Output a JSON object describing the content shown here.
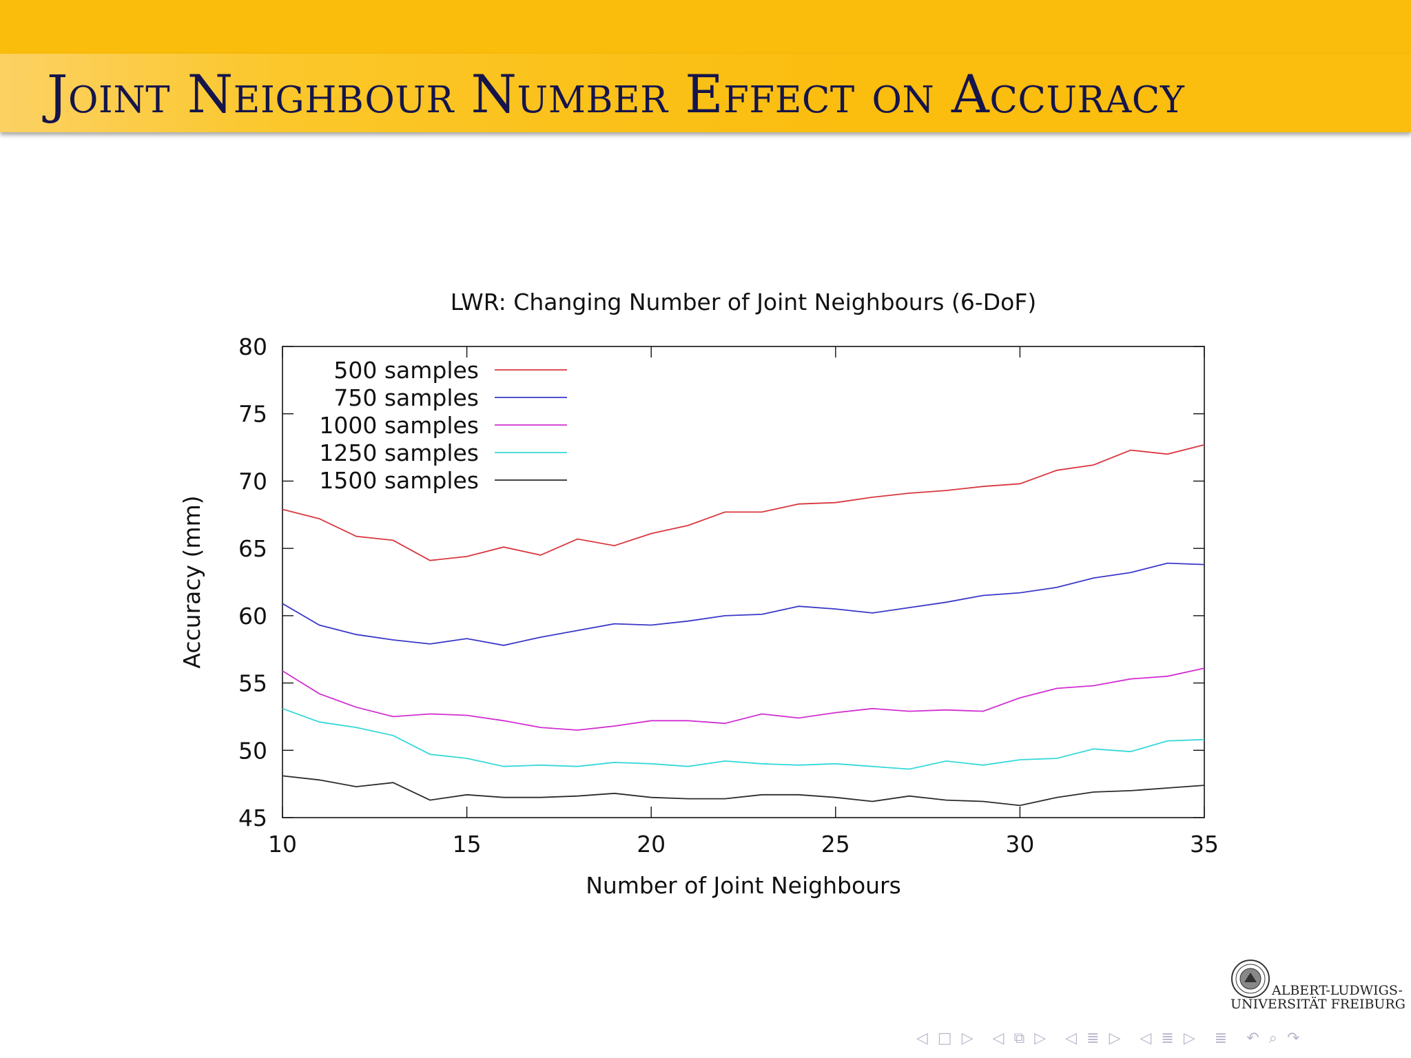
{
  "slide": {
    "title": "Joint Neighbour Number Effect on Accuracy"
  },
  "logo": {
    "line1": "ALBERT-LUDWIGS-",
    "line2": "UNIVERSITÄT FREIBURG"
  },
  "nav": {
    "icons": [
      "arrow-left-icon",
      "frame-icon",
      "arrow-right-icon",
      "arrow-left-icon",
      "subsection-icon",
      "arrow-right-icon",
      "arrow-left-icon",
      "section-icon",
      "arrow-right-icon",
      "arrow-left-icon",
      "list-icon",
      "arrow-right-icon",
      "list-icon",
      "back-icon",
      "search-icon",
      "forward-icon"
    ]
  },
  "colors": {
    "band": "#fbbd0b",
    "title_text": "#15154b",
    "nav": "#b6b6cc"
  },
  "chart_data": {
    "type": "line",
    "title": "LWR: Changing Number of Joint Neighbours (6-DoF)",
    "xlabel": "Number of Joint Neighbours",
    "ylabel": "Accuracy (mm)",
    "xlim": [
      10,
      35
    ],
    "ylim": [
      45,
      80
    ],
    "xticks": [
      10,
      15,
      20,
      25,
      30,
      35
    ],
    "yticks": [
      45,
      50,
      55,
      60,
      65,
      70,
      75,
      80
    ],
    "legend_position": "top-left",
    "grid": false,
    "x": [
      10,
      11,
      12,
      13,
      14,
      15,
      16,
      17,
      18,
      19,
      20,
      21,
      22,
      23,
      24,
      25,
      26,
      27,
      28,
      29,
      30,
      31,
      32,
      33,
      34,
      35
    ],
    "series": [
      {
        "name": "500 samples",
        "color": "#d9363e",
        "values": [
          67.9,
          67.2,
          65.9,
          65.6,
          64.1,
          64.4,
          65.1,
          64.5,
          65.7,
          65.2,
          66.1,
          66.7,
          67.7,
          67.7,
          68.3,
          68.4,
          68.8,
          69.1,
          69.3,
          69.6,
          69.8,
          70.8,
          71.2,
          72.3,
          72.0,
          72.7
        ]
      },
      {
        "name": "750 samples",
        "color": "#3a37c8",
        "values": [
          60.9,
          59.3,
          58.6,
          58.2,
          57.9,
          58.3,
          57.8,
          58.4,
          58.9,
          59.4,
          59.3,
          59.6,
          60.0,
          60.1,
          60.7,
          60.5,
          60.2,
          60.6,
          61.0,
          61.5,
          61.7,
          62.1,
          62.8,
          63.2,
          63.9,
          63.8
        ]
      },
      {
        "name": "1000 samples",
        "color": "#d12ed1",
        "values": [
          55.9,
          54.2,
          53.2,
          52.5,
          52.7,
          52.6,
          52.2,
          51.7,
          51.5,
          51.8,
          52.2,
          52.2,
          52.0,
          52.7,
          52.4,
          52.8,
          53.1,
          52.9,
          53.0,
          52.9,
          53.9,
          54.6,
          54.8,
          55.3,
          55.5,
          56.1
        ]
      },
      {
        "name": "1250 samples",
        "color": "#35d8d8",
        "values": [
          53.1,
          52.1,
          51.7,
          51.1,
          49.7,
          49.4,
          48.8,
          48.9,
          48.8,
          49.1,
          49.0,
          48.8,
          49.2,
          49.0,
          48.9,
          49.0,
          48.8,
          48.6,
          49.2,
          48.9,
          49.3,
          49.4,
          50.1,
          49.9,
          50.7,
          50.8
        ]
      },
      {
        "name": "1500 samples",
        "color": "#2a2a2a",
        "values": [
          48.1,
          47.8,
          47.3,
          47.6,
          46.3,
          46.7,
          46.5,
          46.5,
          46.6,
          46.8,
          46.5,
          46.4,
          46.4,
          46.7,
          46.7,
          46.5,
          46.2,
          46.6,
          46.3,
          46.2,
          45.9,
          46.5,
          46.9,
          47.0,
          47.2,
          47.4
        ]
      }
    ]
  }
}
